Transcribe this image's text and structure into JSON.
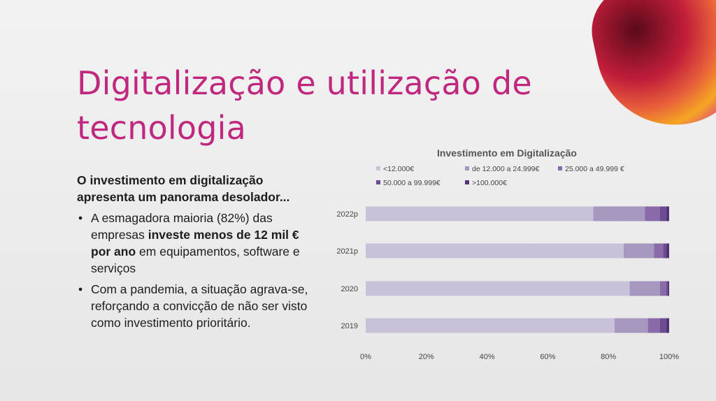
{
  "slide": {
    "title_line1": "Digitalização e utilização de",
    "title_line2": "tecnologia",
    "lead": "O investimento em digitalização apresenta um panorama desolador...",
    "bullet1": {
      "pre": "A esmagadora maioria (82%) das empresas ",
      "bold": "investe menos de 12 mil € por ano",
      "post": " em equipamentos, software e serviços"
    },
    "bullet2": "Com a pandemia, a situação agrava-se, reforçando a convicção de não ser visto como investimento prioritário."
  },
  "colors": {
    "title": "#c0277f",
    "series": [
      "#c9c0d9",
      "#a597be",
      "#8a6aa9",
      "#6c4c90",
      "#4f3577"
    ]
  },
  "chart_data": {
    "type": "bar",
    "orientation": "horizontal",
    "stacked": "percent",
    "title": "Investimento em Digitalização",
    "categories": [
      "2022p",
      "2021p",
      "2020",
      "2019"
    ],
    "series": [
      {
        "name": "<12.000€",
        "values": [
          75,
          85,
          87,
          82
        ]
      },
      {
        "name": "de 12.000 a 24.999€",
        "values": [
          17,
          10,
          10,
          11
        ]
      },
      {
        "name": "25.000 a 49.999 €",
        "values": [
          5,
          3,
          2,
          4
        ]
      },
      {
        "name": "50.000 a 99.999€",
        "values": [
          2,
          1,
          0.5,
          2
        ]
      },
      {
        "name": ">100.000€",
        "values": [
          1,
          1,
          0.5,
          1
        ]
      }
    ],
    "xlim": [
      0,
      100
    ],
    "xticks": [
      "0%",
      "20%",
      "40%",
      "60%",
      "80%",
      "100%"
    ],
    "legend": "top",
    "grid": false
  }
}
